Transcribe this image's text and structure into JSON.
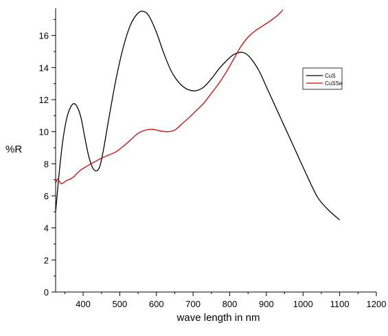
{
  "chart_data": {
    "type": "line",
    "title": "",
    "xlabel": "wave length in nm",
    "ylabel": "%R",
    "xlim": [
      325,
      1200
    ],
    "ylim": [
      0,
      17.7
    ],
    "x_ticks": [
      400,
      500,
      600,
      700,
      800,
      900,
      1000,
      1100,
      1200
    ],
    "y_ticks": [
      0,
      2,
      4,
      6,
      8,
      10,
      12,
      14,
      16
    ],
    "grid": false,
    "legend_position": "right",
    "series": [
      {
        "name": "CuS",
        "color": "#000000",
        "x": [
          325,
          335,
          345,
          355,
          365,
          375,
          385,
          395,
          405,
          415,
          425,
          435,
          445,
          455,
          470,
          490,
          510,
          530,
          550,
          565,
          580,
          600,
          620,
          640,
          660,
          680,
          700,
          715,
          730,
          750,
          770,
          790,
          810,
          830,
          845,
          860,
          880,
          900,
          920,
          950,
          980,
          1010,
          1040,
          1070,
          1100
        ],
        "y": [
          5.0,
          7.5,
          9.5,
          10.8,
          11.5,
          11.75,
          11.5,
          10.8,
          9.6,
          8.5,
          7.8,
          7.55,
          7.8,
          8.8,
          10.8,
          13.3,
          15.3,
          16.7,
          17.4,
          17.5,
          17.2,
          16.2,
          14.9,
          13.8,
          13.1,
          12.7,
          12.55,
          12.6,
          12.8,
          13.3,
          13.9,
          14.4,
          14.8,
          14.95,
          14.85,
          14.5,
          13.8,
          12.8,
          11.8,
          10.3,
          8.8,
          7.3,
          5.9,
          5.1,
          4.5
        ]
      },
      {
        "name": "CuSSe",
        "color": "#e00000",
        "x": [
          325,
          330,
          335,
          340,
          345,
          355,
          365,
          375,
          390,
          410,
          430,
          450,
          470,
          490,
          510,
          530,
          550,
          570,
          590,
          610,
          630,
          650,
          670,
          690,
          710,
          730,
          750,
          770,
          790,
          810,
          830,
          850,
          870,
          890,
          910,
          930,
          945
        ],
        "y": [
          6.8,
          7.05,
          6.9,
          6.75,
          6.8,
          6.95,
          7.05,
          7.2,
          7.55,
          7.85,
          8.1,
          8.35,
          8.55,
          8.75,
          9.1,
          9.5,
          9.9,
          10.1,
          10.15,
          10.05,
          10.0,
          10.1,
          10.5,
          10.9,
          11.35,
          11.8,
          12.4,
          13.0,
          13.7,
          14.5,
          15.3,
          15.9,
          16.3,
          16.6,
          16.9,
          17.25,
          17.6
        ]
      }
    ]
  }
}
